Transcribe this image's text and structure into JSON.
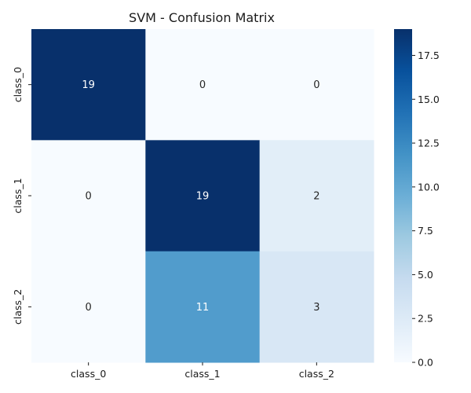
{
  "chart_data": {
    "type": "heatmap",
    "title": "SVM - Confusion Matrix",
    "x_categories": [
      "class_0",
      "class_1",
      "class_2"
    ],
    "y_categories": [
      "class_0",
      "class_1",
      "class_2"
    ],
    "values": [
      [
        19,
        0,
        0
      ],
      [
        0,
        19,
        2
      ],
      [
        0,
        11,
        3
      ]
    ],
    "xlabel": "",
    "ylabel": "",
    "colormap": "Blues",
    "vmin": 0,
    "vmax": 19,
    "colorbar_ticks": [
      "0.0",
      "2.5",
      "5.0",
      "7.5",
      "10.0",
      "12.5",
      "15.0",
      "17.5"
    ],
    "grid": false,
    "low_color": "#f7fbff",
    "high_color": "#08306b",
    "light_text_color": "#ffffff",
    "dark_text_color": "#262626"
  }
}
